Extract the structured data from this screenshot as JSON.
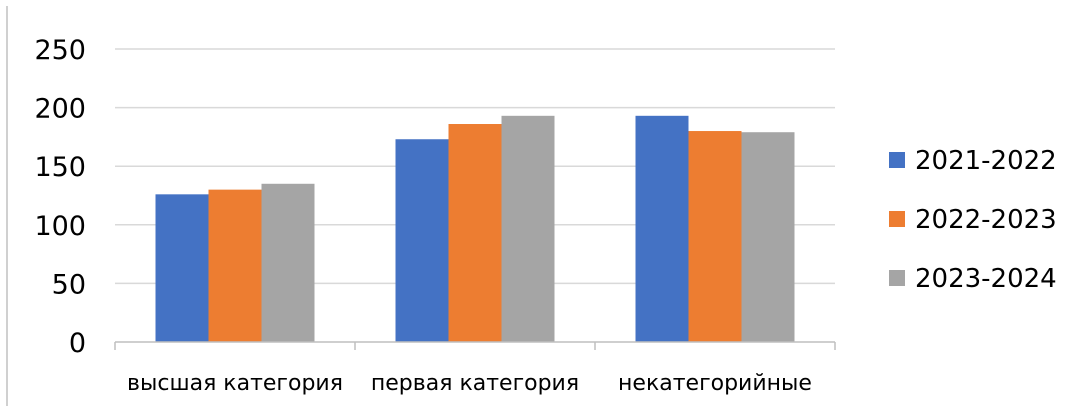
{
  "chart_data": {
    "type": "bar",
    "categories": [
      "высшая категория",
      "первая категория",
      "некатегорийные"
    ],
    "series": [
      {
        "name": "2021-2022",
        "color": "#4472C4",
        "values": [
          126,
          173,
          193
        ]
      },
      {
        "name": "2022-2023",
        "color": "#ED7D31",
        "values": [
          130,
          186,
          180
        ]
      },
      {
        "name": "2023-2024",
        "color": "#A5A5A5",
        "values": [
          135,
          193,
          179
        ]
      }
    ],
    "title": "",
    "xlabel": "",
    "ylabel": "",
    "ylim": [
      0,
      250
    ],
    "yticks": [
      "0",
      "50",
      "100",
      "150",
      "200",
      "250"
    ],
    "grid": true,
    "legend_position": "right"
  }
}
